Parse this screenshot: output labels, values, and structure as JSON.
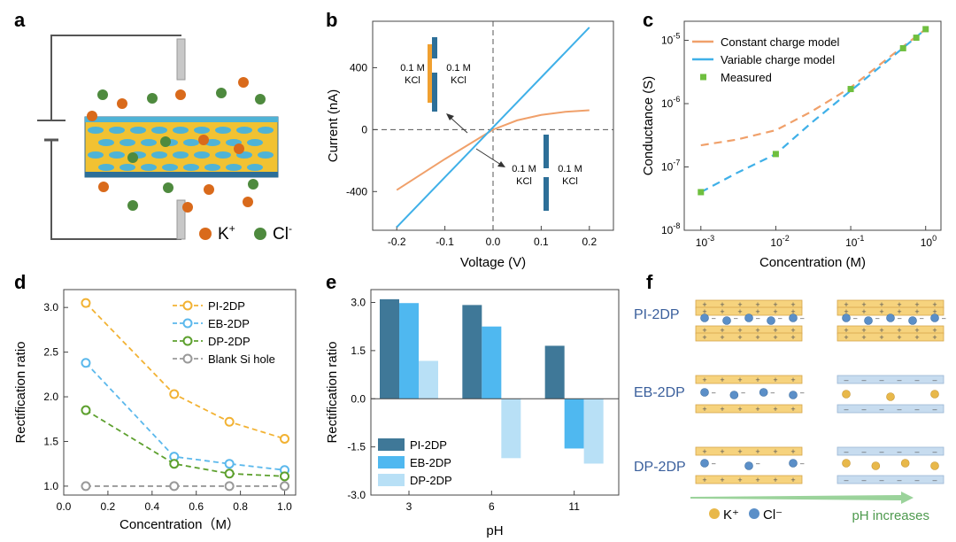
{
  "panels": {
    "a": {
      "label": "a",
      "legend": {
        "k_label": "K",
        "k_sup": "+",
        "cl_label": "Cl",
        "cl_sup": "-"
      },
      "colors": {
        "k": "#d96a1b",
        "cl": "#4e8a3e",
        "membrane_yellow": "#f1c232",
        "membrane_blue": "#4fb3d6"
      }
    },
    "b": {
      "label": "b",
      "inset_top": {
        "left": [
          "0.1 M",
          "KCl"
        ],
        "right": [
          "0.1 M",
          "KCl"
        ]
      },
      "inset_bottom": {
        "left": [
          "0.1 M",
          "KCl"
        ],
        "right": [
          "0.1 M",
          "KCl"
        ]
      }
    },
    "c": {
      "label": "c"
    },
    "d": {
      "label": "d"
    },
    "e": {
      "label": "e"
    },
    "f": {
      "label": "f",
      "rows": [
        "PI-2DP",
        "EB-2DP",
        "DP-2DP"
      ],
      "legend_k": "K⁺",
      "legend_cl": "Cl⁻",
      "arrow_label": "pH increases"
    }
  },
  "chart_data": [
    {
      "panel": "b",
      "type": "line",
      "xlabel": "Voltage (V)",
      "ylabel": "Current (nA)",
      "xlim": [
        -0.25,
        0.25
      ],
      "ylim": [
        -650,
        700
      ],
      "xticks": [
        -0.2,
        -0.1,
        0.0,
        0.1,
        0.2
      ],
      "xtick_labels": [
        "-0.2",
        "-0.1",
        "0.0",
        "0.1",
        "0.2"
      ],
      "yticks": [
        -400,
        0,
        400
      ],
      "ytick_labels": [
        "-400",
        "0",
        "400"
      ],
      "series": [
        {
          "name": "orange",
          "color": "#f0a06a",
          "x": [
            -0.2,
            -0.15,
            -0.1,
            -0.05,
            0,
            0.05,
            0.1,
            0.15,
            0.2
          ],
          "y": [
            -390,
            -290,
            -190,
            -95,
            0,
            60,
            95,
            115,
            125
          ]
        },
        {
          "name": "blue",
          "color": "#3fb0e8",
          "x": [
            -0.2,
            0.2
          ],
          "y": [
            -630,
            660
          ]
        }
      ]
    },
    {
      "panel": "c",
      "type": "line",
      "xlabel": "Concentration (M)",
      "ylabel": "Conductance (S)",
      "xscale": "log",
      "yscale": "log",
      "xlim": [
        0.0006,
        1.6
      ],
      "ylim": [
        1e-08,
        2e-05
      ],
      "xtick_base": [
        "10",
        "10",
        "10",
        "10"
      ],
      "xtick_exp": [
        "-3",
        "-2",
        "-1",
        "0"
      ],
      "ytick_base": [
        "10",
        "10",
        "10",
        "10"
      ],
      "ytick_exp": [
        "-8",
        "-7",
        "-6",
        "-5"
      ],
      "series": [
        {
          "name": "Constant charge model",
          "color": "#f0a06a",
          "dashed": true,
          "x": [
            0.001,
            0.003,
            0.01,
            0.03,
            0.1,
            0.3,
            1.0
          ],
          "y": [
            2.2e-07,
            2.7e-07,
            3.8e-07,
            7.5e-07,
            1.8e-06,
            5e-06,
            1.5e-05
          ]
        },
        {
          "name": "Variable charge model",
          "color": "#3fb0e8",
          "dashed": true,
          "x": [
            0.001,
            0.003,
            0.01,
            0.03,
            0.1,
            0.3,
            1.0
          ],
          "y": [
            4e-08,
            8e-08,
            1.6e-07,
            5e-07,
            1.6e-06,
            4.6e-06,
            1.5e-05
          ]
        },
        {
          "name": "Measured",
          "color": "#6fbf3f",
          "marker": "square",
          "x": [
            0.001,
            0.01,
            0.1,
            0.5,
            0.75,
            1.0
          ],
          "y": [
            4e-08,
            1.6e-07,
            1.7e-06,
            7.5e-06,
            1.1e-05,
            1.5e-05
          ]
        }
      ]
    },
    {
      "panel": "d",
      "type": "line",
      "xlabel": "Concentration（M）",
      "ylabel": "Rectification ratio",
      "xlim": [
        0.0,
        1.05
      ],
      "ylim": [
        0.9,
        3.2
      ],
      "xticks": [
        0.0,
        0.2,
        0.4,
        0.6,
        0.8,
        1.0
      ],
      "xtick_labels": [
        "0.0",
        "0.2",
        "0.4",
        "0.6",
        "0.8",
        "1.0"
      ],
      "yticks": [
        1.0,
        1.5,
        2.0,
        2.5,
        3.0
      ],
      "ytick_labels": [
        "1.0",
        "1.5",
        "2.0",
        "2.5",
        "3.0"
      ],
      "x": [
        0.1,
        0.5,
        0.75,
        1.0
      ],
      "series": [
        {
          "name": "PI-2DP",
          "color": "#f2b233",
          "values": [
            3.05,
            2.03,
            1.72,
            1.53
          ]
        },
        {
          "name": "EB-2DP",
          "color": "#5bb8ec",
          "values": [
            2.38,
            1.33,
            1.25,
            1.18
          ]
        },
        {
          "name": "DP-2DP",
          "color": "#5da02e",
          "values": [
            1.85,
            1.25,
            1.14,
            1.11
          ]
        },
        {
          "name": "Blank Si hole",
          "color": "#999999",
          "values": [
            1.0,
            1.0,
            1.0,
            1.0
          ]
        }
      ]
    },
    {
      "panel": "e",
      "type": "bar",
      "xlabel": "pH",
      "ylabel": "Rectification ratio",
      "ylim": [
        -3.0,
        3.4
      ],
      "yticks": [
        -3.0,
        -1.5,
        0.0,
        1.5,
        3.0
      ],
      "ytick_labels": [
        "-3.0",
        "-1.5",
        "0.0",
        "1.5",
        "3.0"
      ],
      "categories": [
        "3",
        "6",
        "11"
      ],
      "series": [
        {
          "name": "PI-2DP",
          "color": "#3f7898",
          "values": [
            3.1,
            2.92,
            1.65
          ]
        },
        {
          "name": "EB-2DP",
          "color": "#4fb8f0",
          "values": [
            2.98,
            2.25,
            -1.55
          ]
        },
        {
          "name": "DP-2DP",
          "color": "#b8e0f6",
          "values": [
            1.18,
            -1.85,
            -2.02
          ]
        }
      ]
    }
  ]
}
